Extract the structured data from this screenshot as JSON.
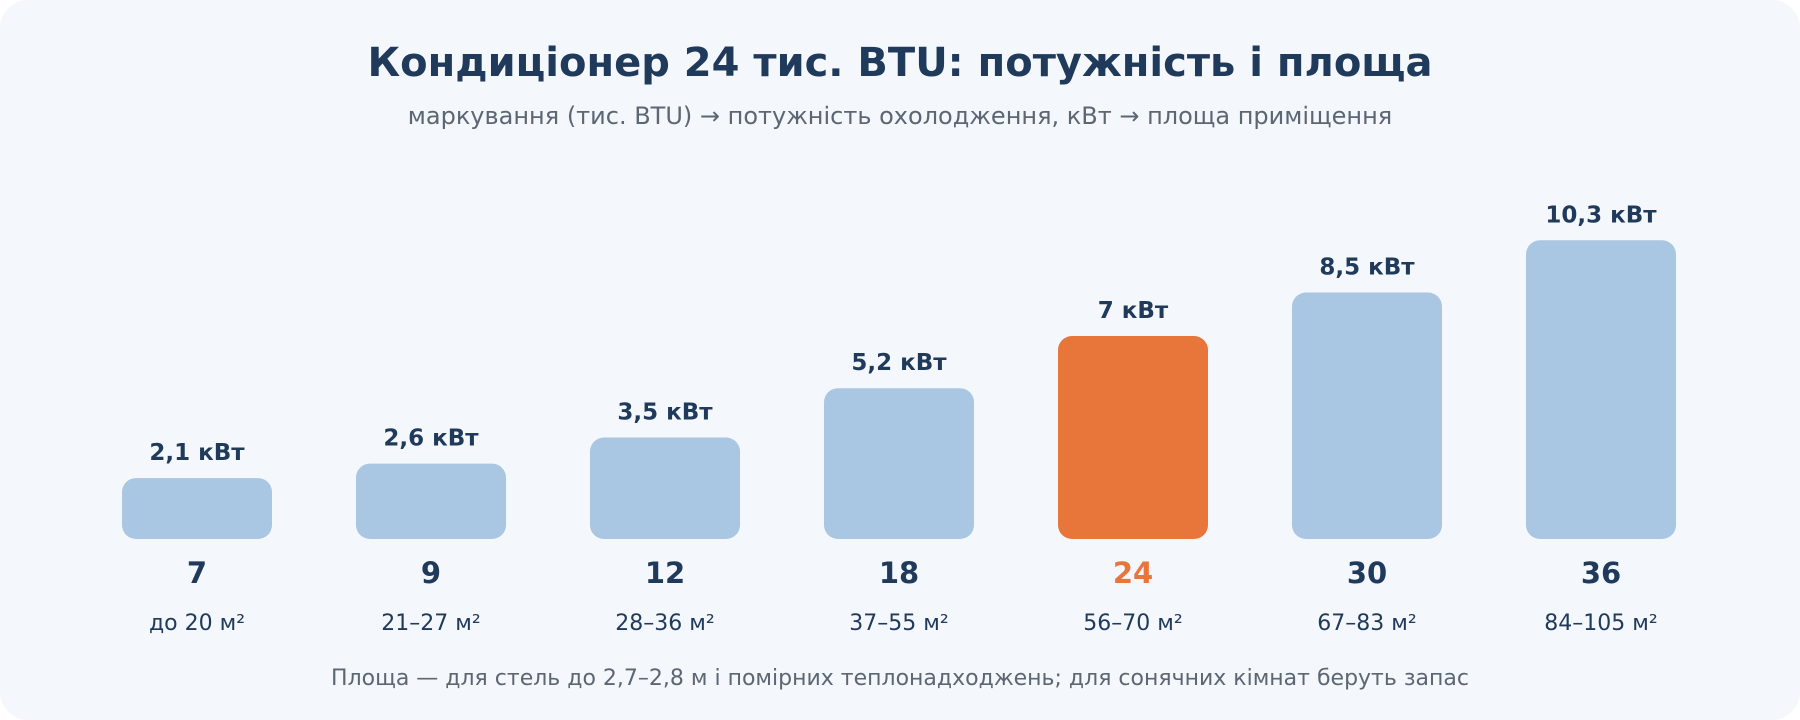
{
  "title": "Кондиціонер 24 тис. BTU: потужність і площа",
  "subtitle": "маркування (тис. BTU) → потужність охолодження, кВт → площа приміщення",
  "footnote": "Площа — для стель до 2,7–2,8 м і помірних теплонадходжень; для сонячних кімнат беруть запас",
  "colors": {
    "bar": "#a9c6e3",
    "highlight": "#e8753a",
    "text_dark": "#1f3a5a",
    "text_muted": "#5d6673",
    "background": "#f4f7fb"
  },
  "chart_data": {
    "type": "bar",
    "categories": [
      "7",
      "9",
      "12",
      "18",
      "24",
      "30",
      "36"
    ],
    "values": [
      2.1,
      2.6,
      3.5,
      5.2,
      7,
      8.5,
      10.3
    ],
    "value_labels": [
      "2,1 кВт",
      "2,6 кВт",
      "3,5 кВт",
      "5,2 кВт",
      "7 кВт",
      "8,5 кВт",
      "10,3 кВт"
    ],
    "areas": [
      "до 20 м²",
      "21–27 м²",
      "28–36 м²",
      "37–55 м²",
      "56–70 м²",
      "67–83 м²",
      "84–105 м²"
    ],
    "highlight_category": "24",
    "title": "Кондиціонер 24 тис. BTU: потужність і площа",
    "xlabel": "",
    "ylabel": "",
    "grid": false,
    "legend": "none"
  }
}
